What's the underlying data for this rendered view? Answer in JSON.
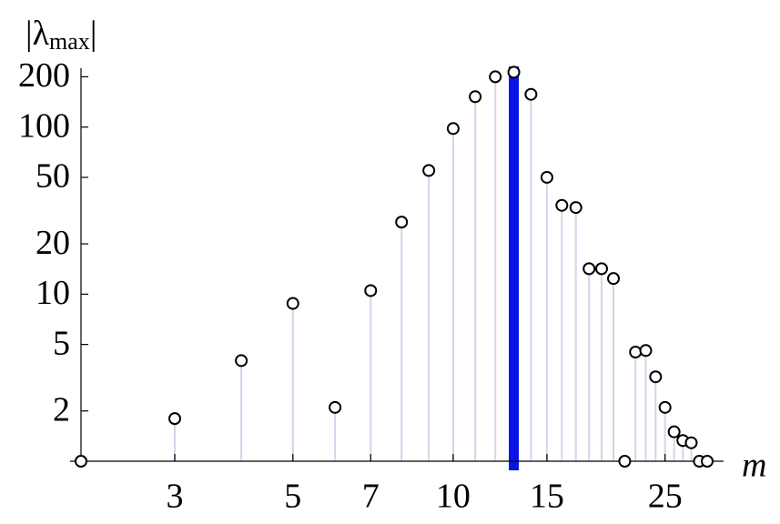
{
  "chart_data": {
    "type": "stem",
    "y_label_parts": [
      "|λ",
      "max",
      "|"
    ],
    "x_label": "m",
    "x": [
      2,
      3,
      4,
      5,
      6,
      7,
      8,
      9,
      10,
      11,
      12,
      13,
      14,
      15,
      16,
      17,
      18,
      19,
      20,
      21,
      22,
      23,
      24,
      25,
      26,
      27,
      28,
      29,
      30
    ],
    "values": [
      1,
      1.8,
      4.0,
      8.8,
      2.1,
      10.5,
      27,
      55,
      98,
      152,
      200,
      213,
      157,
      50,
      34,
      33,
      14.2,
      14.2,
      12.4,
      1,
      4.5,
      4.6,
      3.2,
      2.1,
      1.5,
      1.33,
      1.29,
      1,
      1
    ],
    "highlight_x": 13,
    "highlight_color": "#0a14e6",
    "stem_color": "#d4d4ec",
    "marker_color": "#000000",
    "x_log": true,
    "y_log": true,
    "xlim": [
      2,
      32.2
    ],
    "ylim": [
      1,
      225
    ],
    "xticks": [
      3,
      5,
      7,
      10,
      15,
      25
    ],
    "yticks": [
      2,
      5,
      10,
      20,
      50,
      100,
      200
    ]
  }
}
